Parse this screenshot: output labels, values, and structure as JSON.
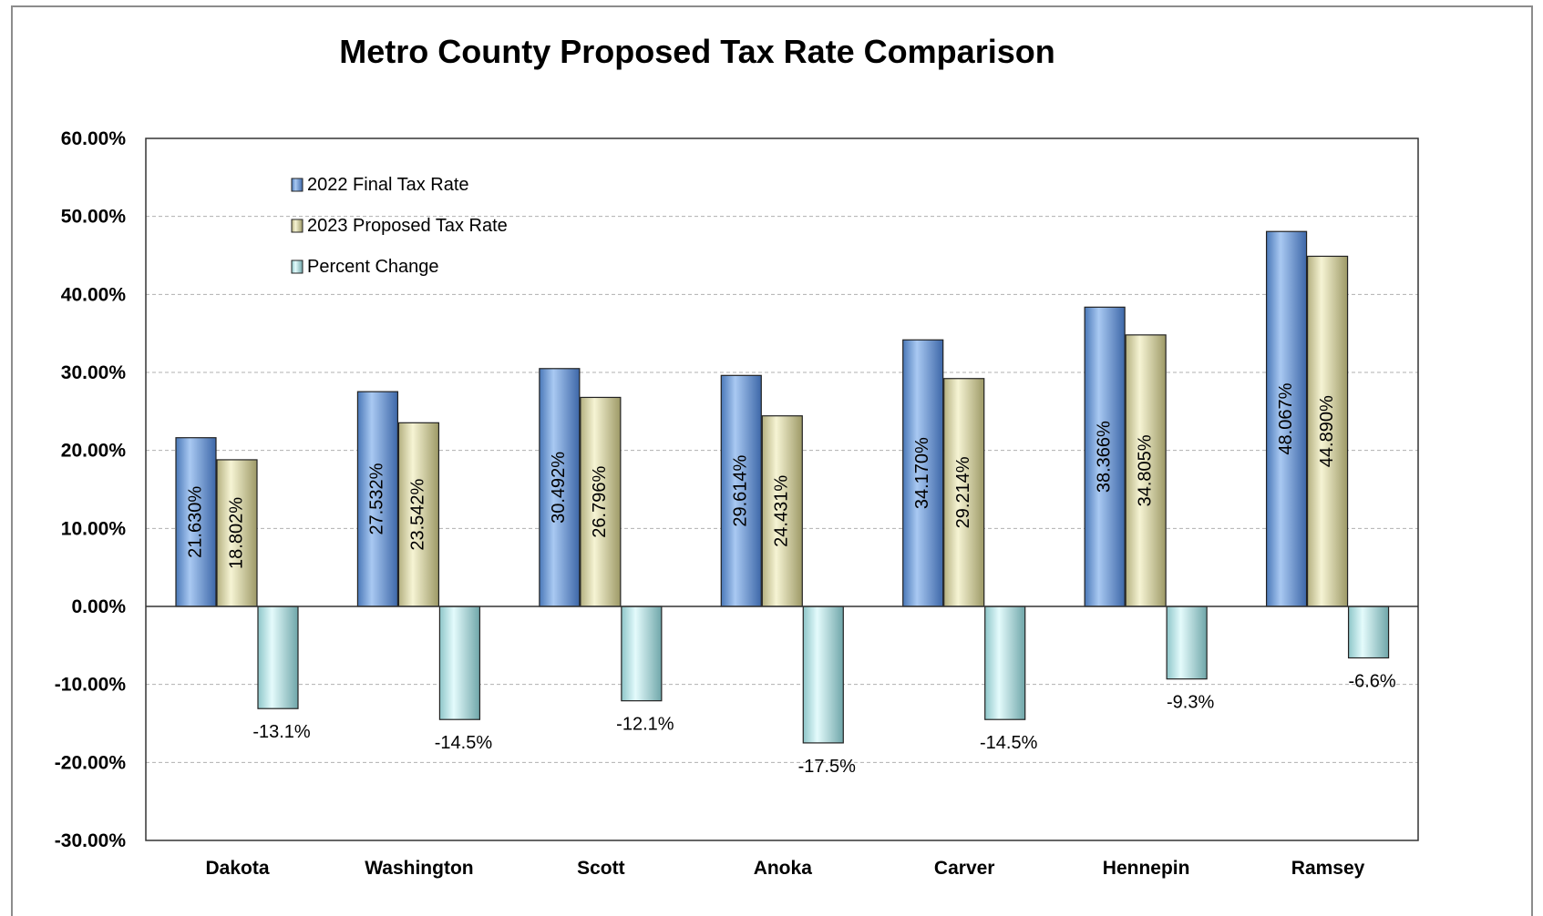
{
  "chart_data": {
    "type": "bar",
    "title": "Metro County Proposed Tax Rate Comparison",
    "categories": [
      "Dakota",
      "Washington",
      "Scott",
      "Anoka",
      "Carver",
      "Hennepin",
      "Ramsey"
    ],
    "series": [
      {
        "name": "2022 Final Tax Rate",
        "color": "#6fa0de",
        "values": [
          21.63,
          27.532,
          30.492,
          29.614,
          34.17,
          38.366,
          48.067
        ],
        "labels": [
          "21.630%",
          "27.532%",
          "30.492%",
          "29.614%",
          "34.170%",
          "38.366%",
          "48.067%"
        ]
      },
      {
        "name": "2023 Proposed Tax Rate",
        "color": "#e6e3b4",
        "values": [
          18.802,
          23.542,
          26.796,
          24.431,
          29.214,
          34.805,
          44.89
        ],
        "labels": [
          "18.802%",
          "23.542%",
          "26.796%",
          "24.431%",
          "29.214%",
          "34.805%",
          "44.890%"
        ]
      },
      {
        "name": "Percent Change",
        "color": "#bfeef0",
        "values": [
          -13.1,
          -14.5,
          -12.1,
          -17.5,
          -14.5,
          -9.3,
          -6.6
        ],
        "labels": [
          "-13.1%",
          "-14.5%",
          "-12.1%",
          "-17.5%",
          "-14.5%",
          "-9.3%",
          "-6.6%"
        ]
      }
    ],
    "ylim": [
      -30,
      60
    ],
    "yticks": [
      60,
      50,
      40,
      30,
      20,
      10,
      0,
      -10,
      -20,
      -30
    ],
    "ytick_labels": [
      "60.00%",
      "50.00%",
      "40.00%",
      "30.00%",
      "20.00%",
      "10.00%",
      "0.00%",
      "-10.00%",
      "-20.00%",
      "-30.00%"
    ],
    "grid": true,
    "legend_position": "top-left inside plot"
  }
}
